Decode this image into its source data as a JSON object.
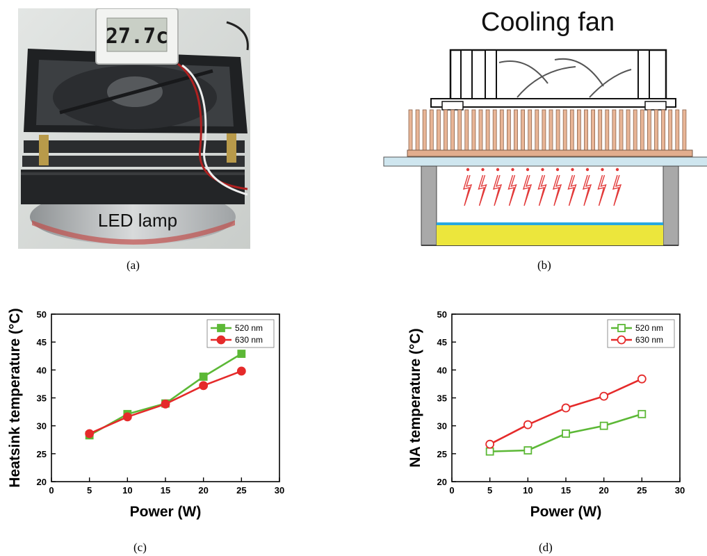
{
  "panels": {
    "a": {
      "label": "(a)",
      "lamp_text": "LED lamp",
      "display_reading": "27.7c"
    },
    "b": {
      "label": "(b)",
      "title": "Cooling fan"
    },
    "c": {
      "label": "(c)"
    },
    "d": {
      "label": "(d)"
    }
  },
  "chart_data": [
    {
      "type": "line",
      "panel": "c",
      "xlabel": "Power (W)",
      "ylabel": "Heatsink temperature (°C)",
      "xlim": [
        0,
        30
      ],
      "ylim": [
        20,
        50
      ],
      "xticks": [
        0,
        5,
        10,
        15,
        20,
        25,
        30
      ],
      "yticks": [
        20,
        25,
        30,
        35,
        40,
        45,
        50
      ],
      "x": [
        5,
        10,
        15,
        20,
        25
      ],
      "legend_position": "top-right",
      "series": [
        {
          "name": "520 nm",
          "color": "#5cb836",
          "marker": "square-filled",
          "values": [
            28.3,
            32.1,
            34.0,
            38.8,
            42.9
          ]
        },
        {
          "name": "630 nm",
          "color": "#e52a2a",
          "marker": "circle-filled",
          "values": [
            28.6,
            31.6,
            33.9,
            37.2,
            39.8
          ]
        }
      ]
    },
    {
      "type": "line",
      "panel": "d",
      "xlabel": "Power (W)",
      "ylabel": "NA temperature (°C)",
      "xlim": [
        0,
        30
      ],
      "ylim": [
        20,
        50
      ],
      "xticks": [
        0,
        5,
        10,
        15,
        20,
        25,
        30
      ],
      "yticks": [
        20,
        25,
        30,
        35,
        40,
        45,
        50
      ],
      "x": [
        5,
        10,
        15,
        20,
        25
      ],
      "legend_position": "top-right",
      "series": [
        {
          "name": "520 nm",
          "color": "#5cb836",
          "marker": "square-open",
          "values": [
            25.4,
            25.6,
            28.6,
            30.0,
            32.1
          ]
        },
        {
          "name": "630 nm",
          "color": "#e52a2a",
          "marker": "circle-open",
          "values": [
            26.7,
            30.2,
            33.2,
            35.3,
            38.4
          ]
        }
      ]
    }
  ]
}
